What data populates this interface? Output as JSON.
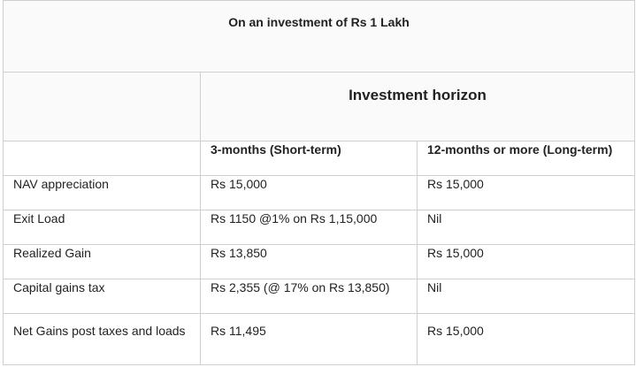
{
  "title": "On an investment of Rs 1 Lakh",
  "horizon_label": "Investment horizon",
  "columns": [
    "3-months (Short-term)",
    "12-months or more (Long-term)"
  ],
  "rows": [
    {
      "label": "NAV appreciation",
      "short": "Rs 15,000",
      "long": "Rs 15,000"
    },
    {
      "label": "Exit Load",
      "short": "Rs 1150 @1% on Rs 1,15,000",
      "long": "Nil"
    },
    {
      "label": "Realized Gain",
      "short": "Rs 13,850",
      "long": "Rs 15,000"
    },
    {
      "label": "Capital gains tax",
      "short": "Rs 2,355 (@ 17% on Rs 13,850)",
      "long": "Nil"
    },
    {
      "label": "Net Gains post taxes and loads",
      "short": "Rs 11,495",
      "long": "Rs 15,000"
    }
  ]
}
